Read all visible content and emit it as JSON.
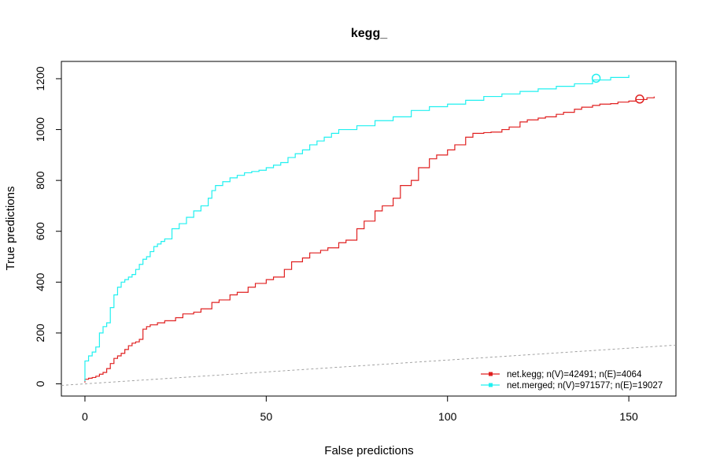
{
  "chart_data": {
    "type": "line",
    "title": "kegg_",
    "xlabel": "False predictions",
    "ylabel": "True predictions",
    "xlim": [
      -6.5,
      163
    ],
    "ylim": [
      -48,
      1268
    ],
    "x_ticks": [
      0,
      50,
      100,
      150
    ],
    "y_ticks": [
      0,
      200,
      400,
      600,
      800,
      1000,
      1200
    ],
    "grid": false,
    "legend_position": "bottom-right",
    "random_baseline": {
      "style": "dashed",
      "color": "#999999",
      "slope": 0.935
    },
    "series": [
      {
        "name": "net.kegg; n(V)=42491; n(E)=4064",
        "color": "#e02020",
        "step": true,
        "x": [
          0,
          0,
          1,
          2,
          3,
          4,
          5,
          6,
          7,
          8,
          9,
          10,
          11,
          12,
          13,
          14,
          15,
          16,
          17,
          18,
          20,
          22,
          25,
          27,
          30,
          32,
          35,
          37,
          40,
          42,
          45,
          47,
          50,
          52,
          55,
          57,
          60,
          62,
          65,
          67,
          70,
          72,
          75,
          77,
          80,
          82,
          85,
          87,
          90,
          92,
          95,
          97,
          100,
          102,
          105,
          107,
          110,
          112,
          115,
          117,
          120,
          122,
          125,
          127,
          130,
          132,
          135,
          137,
          140,
          142,
          145,
          147,
          150,
          152,
          155,
          157
        ],
        "y": [
          5,
          18,
          22,
          25,
          30,
          38,
          45,
          60,
          80,
          100,
          110,
          120,
          135,
          150,
          160,
          165,
          175,
          215,
          225,
          232,
          240,
          248,
          260,
          275,
          282,
          295,
          320,
          330,
          350,
          360,
          380,
          395,
          410,
          420,
          450,
          480,
          495,
          515,
          525,
          535,
          555,
          565,
          610,
          640,
          680,
          700,
          730,
          780,
          800,
          850,
          885,
          900,
          920,
          940,
          970,
          985,
          988,
          990,
          1000,
          1010,
          1030,
          1038,
          1045,
          1050,
          1060,
          1068,
          1080,
          1088,
          1095,
          1100,
          1102,
          1108,
          1112,
          1118,
          1125,
          1130
        ]
      },
      {
        "name": "net.merged; n(V)=971577; n(E)=19027",
        "color": "#20f0f0",
        "step": true,
        "x": [
          0,
          0,
          1,
          2,
          3,
          4,
          5,
          6,
          7,
          8,
          9,
          10,
          11,
          12,
          13,
          14,
          15,
          16,
          17,
          18,
          19,
          20,
          21,
          22,
          24,
          26,
          28,
          30,
          32,
          34,
          35,
          36,
          38,
          40,
          42,
          44,
          46,
          48,
          50,
          52,
          54,
          56,
          58,
          60,
          62,
          64,
          66,
          68,
          70,
          75,
          80,
          85,
          90,
          95,
          100,
          105,
          110,
          115,
          120,
          125,
          130,
          135,
          140,
          145,
          150
        ],
        "y": [
          10,
          90,
          110,
          125,
          145,
          200,
          225,
          240,
          300,
          350,
          380,
          400,
          410,
          420,
          430,
          450,
          470,
          490,
          500,
          520,
          540,
          550,
          560,
          570,
          610,
          630,
          655,
          680,
          700,
          730,
          760,
          780,
          795,
          810,
          820,
          830,
          835,
          840,
          850,
          860,
          870,
          890,
          905,
          920,
          940,
          955,
          970,
          985,
          1000,
          1015,
          1035,
          1050,
          1075,
          1090,
          1100,
          1115,
          1130,
          1140,
          1150,
          1160,
          1170,
          1180,
          1195,
          1205,
          1215
        ]
      }
    ],
    "highlight_points": [
      {
        "series": 0,
        "x": 153,
        "y": 1120
      },
      {
        "series": 1,
        "x": 141,
        "y": 1202
      }
    ]
  }
}
